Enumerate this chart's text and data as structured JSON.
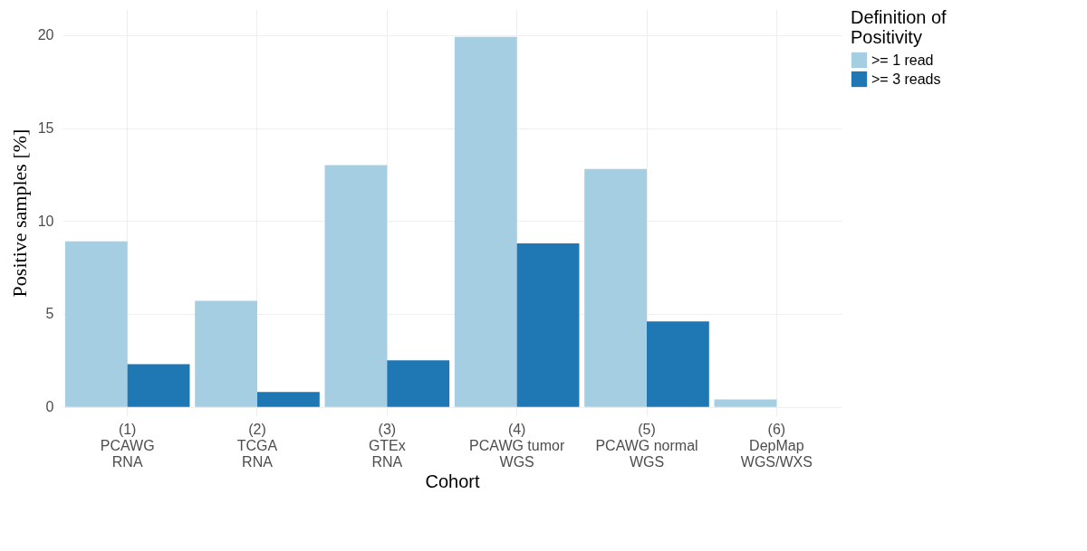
{
  "chart_data": {
    "type": "bar",
    "xlabel": "Cohort",
    "ylabel": "Positive samples [%]",
    "legend_title": "Definition of Positivity",
    "categories": [
      "(1)\nPCAWG\nRNA",
      "(2)\nTCGA\nRNA",
      "(3)\nGTEx\nRNA",
      "(4)\nPCAWG tumor\nWGS",
      "(5)\nPCAWG normal\nWGS",
      "(6)\nDepMap\nWGS/WXS"
    ],
    "series": [
      {
        "name": ">= 1 read",
        "color": "#a6cee3",
        "values": [
          8.9,
          5.7,
          13.0,
          19.9,
          12.8,
          0.4
        ]
      },
      {
        "name": ">= 3 reads",
        "color": "#1f78b4",
        "values": [
          2.3,
          0.8,
          2.5,
          8.8,
          4.6,
          0
        ]
      }
    ],
    "ylim": [
      -0.5,
      21.4
    ],
    "yticks": [
      0,
      5,
      10,
      15,
      20
    ],
    "grid": true,
    "legend": "right"
  }
}
